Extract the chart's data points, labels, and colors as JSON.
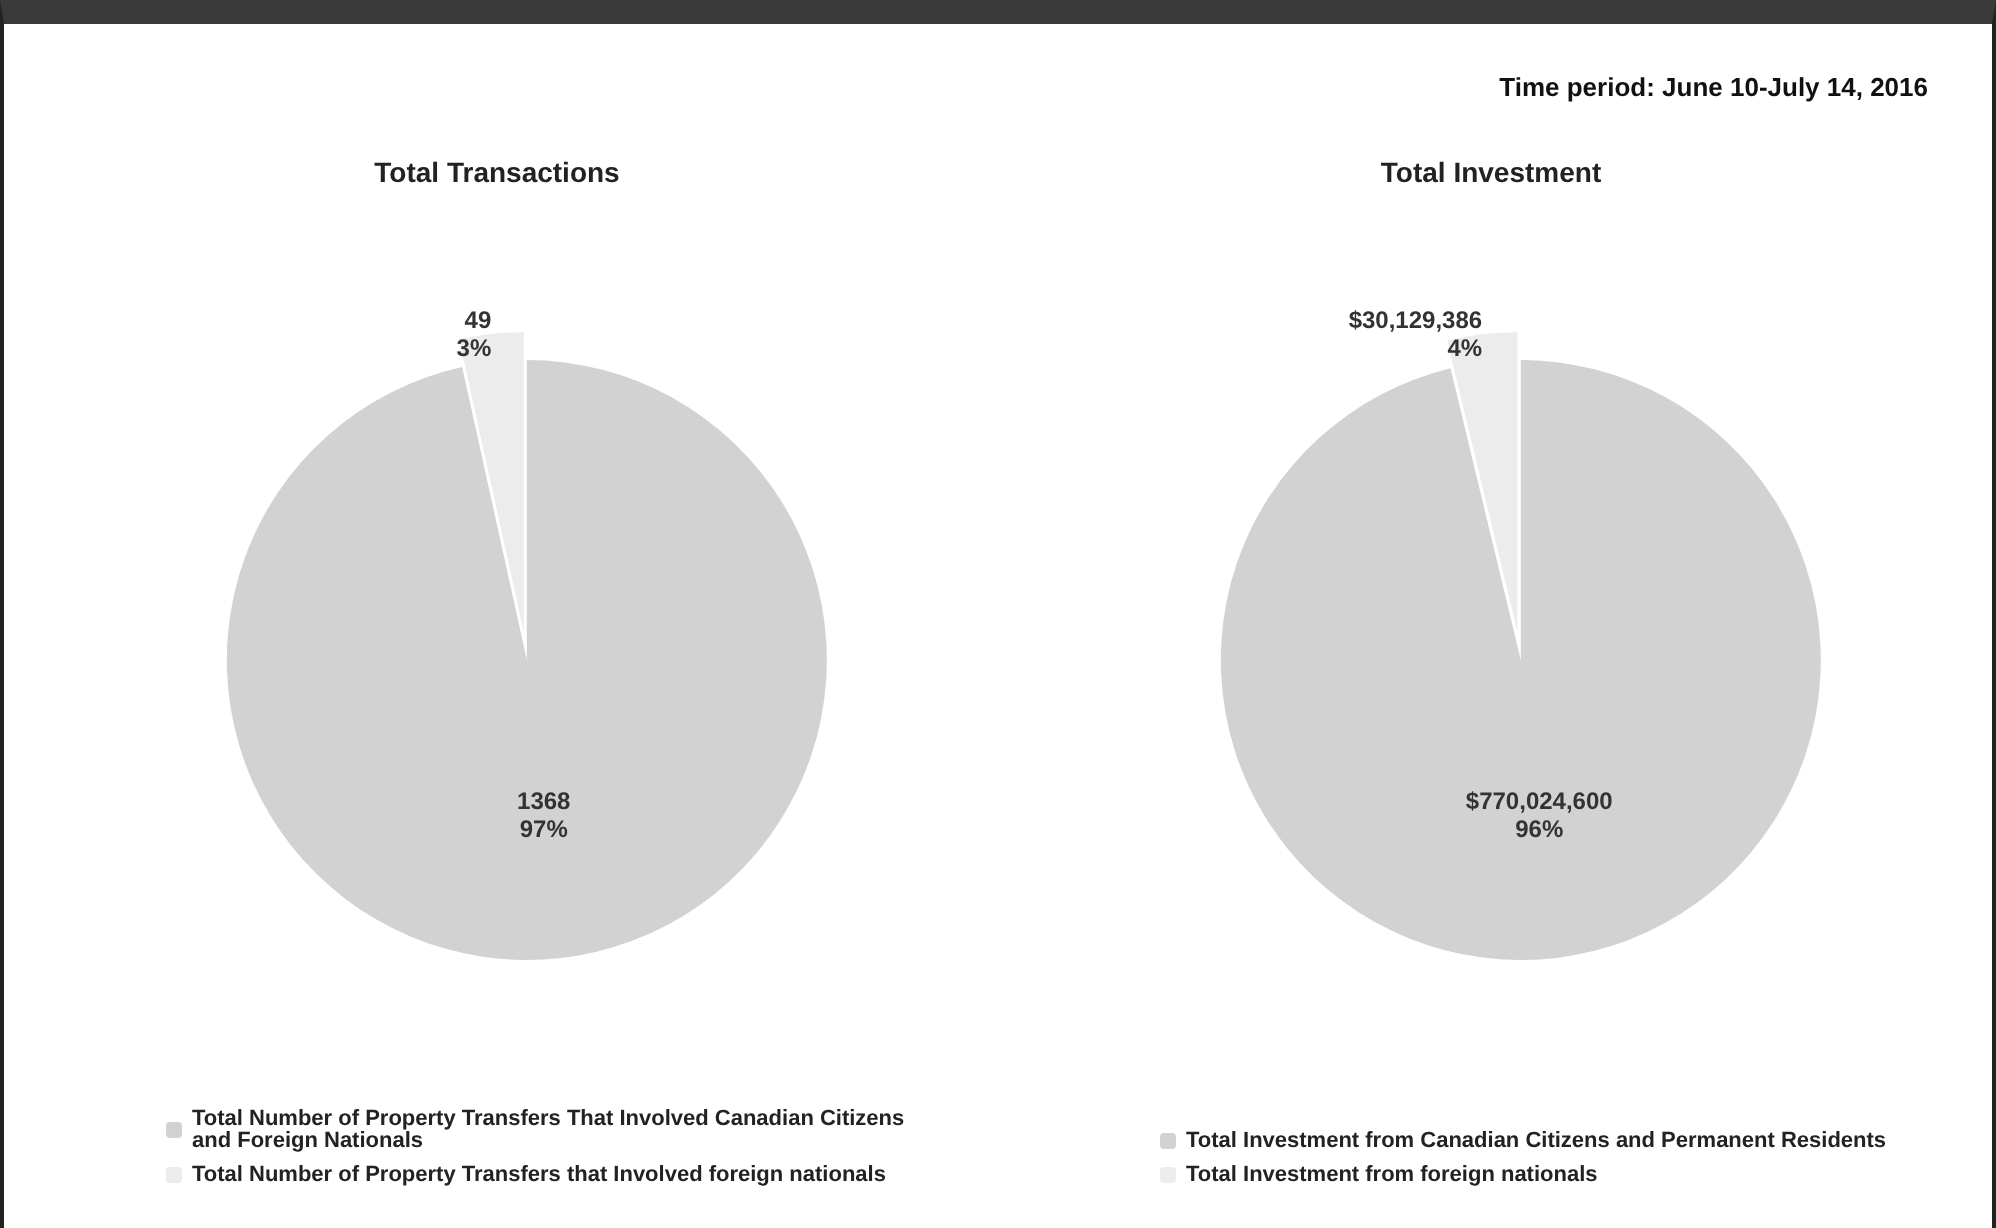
{
  "chart_data": [
    {
      "type": "pie",
      "title": "Total Transactions",
      "categories": [
        "Total Number of Property Transfers That Involved Canadian Citizens and Foreign Nationals",
        "Total Number of Property Transfers that Involved foreign nationals"
      ],
      "values": [
        1368,
        49
      ],
      "colors": [
        "#d2d2d2",
        "#ececec"
      ],
      "value_labels": [
        "1368\n97%",
        "49\n3%"
      ],
      "legend": "bottom"
    },
    {
      "type": "pie",
      "title": "Total Investment",
      "categories": [
        "Total Investment from Canadian Citizens and Permanent Residents",
        "Total Investment from foreign nationals"
      ],
      "values": [
        770024600,
        30129386
      ],
      "colors": [
        "#d2d2d2",
        "#ececec"
      ],
      "value_labels": [
        "$770,024,600\n96%",
        "$30,129,386\n4%"
      ],
      "legend": "bottom",
      "annotations": [
        "Time period: June 10-July 14, 2016"
      ]
    }
  ]
}
